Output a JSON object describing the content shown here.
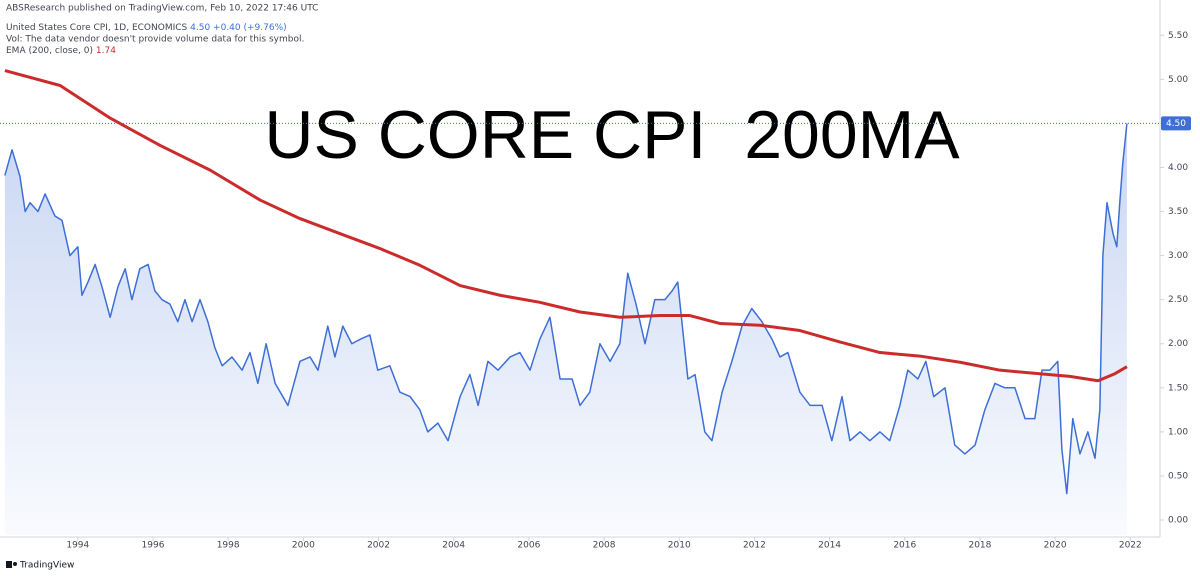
{
  "header": {
    "published": "ABSResearch published on TradingView.com, Feb 10, 2022 17:46 UTC",
    "volume_note": "Vol: The data vendor doesn't provide volume data for this symbol.",
    "brand": "TradingView"
  },
  "chart_data": {
    "type": "line",
    "title": "US CORE CPI  200MA",
    "series": [
      {
        "name": "United States Core CPI, 1D, ECONOMICS",
        "color": "#3d6fd6",
        "last_label": "4.50",
        "change_label": "+0.40 (+9.76%)",
        "x": [
          1992.06,
          1992.25,
          1992.46,
          1992.6,
          1992.73,
          1992.94,
          1993.13,
          1993.39,
          1993.58,
          1993.79,
          1994.0,
          1994.11,
          1994.27,
          1994.46,
          1994.64,
          1994.86,
          1995.07,
          1995.26,
          1995.44,
          1995.65,
          1995.87,
          1996.05,
          1996.24,
          1996.45,
          1996.66,
          1996.85,
          1997.04,
          1997.25,
          1997.46,
          1997.65,
          1997.84,
          1998.1,
          1998.37,
          1998.58,
          1998.79,
          1999.01,
          1999.25,
          1999.59,
          1999.91,
          2000.18,
          2000.39,
          2000.65,
          2000.84,
          2001.05,
          2001.29,
          2001.51,
          2001.77,
          2001.98,
          2002.3,
          2002.57,
          2002.84,
          2003.1,
          2003.31,
          2003.58,
          2003.85,
          2004.17,
          2004.43,
          2004.65,
          2004.91,
          2005.18,
          2005.5,
          2005.76,
          2006.03,
          2006.29,
          2006.56,
          2006.83,
          2007.15,
          2007.36,
          2007.62,
          2007.89,
          2008.16,
          2008.42,
          2008.63,
          2008.85,
          2009.09,
          2009.35,
          2009.62,
          2009.81,
          2009.96,
          2010.23,
          2010.42,
          2010.68,
          2010.87,
          2011.14,
          2011.4,
          2011.67,
          2011.93,
          2012.2,
          2012.47,
          2012.68,
          2012.89,
          2013.21,
          2013.48,
          2013.8,
          2014.06,
          2014.33,
          2014.54,
          2014.81,
          2015.07,
          2015.34,
          2015.6,
          2015.87,
          2016.08,
          2016.35,
          2016.56,
          2016.77,
          2017.07,
          2017.33,
          2017.6,
          2017.87,
          2018.13,
          2018.4,
          2018.66,
          2018.93,
          2019.2,
          2019.46,
          2019.65,
          2019.86,
          2020.07,
          2020.18,
          2020.31,
          2020.47,
          2020.66,
          2020.87,
          2021.06,
          2021.19,
          2021.27,
          2021.38,
          2021.54,
          2021.64,
          2021.72,
          2021.8,
          2021.91
        ],
        "values": [
          3.91,
          4.2,
          3.9,
          3.5,
          3.6,
          3.5,
          3.7,
          3.45,
          3.4,
          3.0,
          3.1,
          2.55,
          2.7,
          2.9,
          2.65,
          2.3,
          2.65,
          2.85,
          2.5,
          2.85,
          2.9,
          2.6,
          2.5,
          2.45,
          2.25,
          2.5,
          2.25,
          2.5,
          2.25,
          1.95,
          1.75,
          1.85,
          1.7,
          1.9,
          1.55,
          2.0,
          1.55,
          1.3,
          1.8,
          1.85,
          1.7,
          2.2,
          1.85,
          2.2,
          2.0,
          2.05,
          2.1,
          1.7,
          1.75,
          1.45,
          1.4,
          1.25,
          1.0,
          1.1,
          0.9,
          1.4,
          1.65,
          1.3,
          1.8,
          1.7,
          1.85,
          1.9,
          1.7,
          2.05,
          2.3,
          1.6,
          1.6,
          1.3,
          1.45,
          2.0,
          1.8,
          2.0,
          2.8,
          2.45,
          2.0,
          2.5,
          2.5,
          2.6,
          2.7,
          1.6,
          1.65,
          1.0,
          0.9,
          1.45,
          1.8,
          2.2,
          2.4,
          2.25,
          2.05,
          1.85,
          1.9,
          1.45,
          1.3,
          1.3,
          0.9,
          1.4,
          0.9,
          1.0,
          0.9,
          1.0,
          0.9,
          1.3,
          1.7,
          1.6,
          1.8,
          1.4,
          1.5,
          0.85,
          0.75,
          0.85,
          1.25,
          1.55,
          1.5,
          1.5,
          1.15,
          1.15,
          1.7,
          1.7,
          1.8,
          0.8,
          0.3,
          1.15,
          0.75,
          1.0,
          0.7,
          1.25,
          3.0,
          3.6,
          3.25,
          3.1,
          3.6,
          4.05,
          4.5
        ]
      },
      {
        "name": "EMA (200, close, 0)",
        "color": "#cc2b2b",
        "last_label": "1.74",
        "x": [
          1992.06,
          1993.53,
          1994.86,
          1996.19,
          1997.52,
          1998.85,
          1999.91,
          2000.97,
          2002.04,
          2003.1,
          2004.17,
          2005.23,
          2006.29,
          2007.36,
          2008.42,
          2009.49,
          2010.28,
          2011.08,
          2012.15,
          2013.21,
          2014.27,
          2015.34,
          2016.4,
          2017.47,
          2018.53,
          2019.59,
          2020.39,
          2021.14,
          2021.59,
          2021.91
        ],
        "values": [
          5.1,
          4.93,
          4.56,
          4.25,
          3.97,
          3.63,
          3.42,
          3.25,
          3.08,
          2.89,
          2.66,
          2.55,
          2.47,
          2.36,
          2.3,
          2.32,
          2.32,
          2.23,
          2.21,
          2.15,
          2.02,
          1.9,
          1.86,
          1.79,
          1.7,
          1.66,
          1.63,
          1.58,
          1.66,
          1.74
        ]
      }
    ],
    "xlim": [
      1991.93,
      2022.79
    ],
    "xticks": [
      1994,
      1996,
      1998,
      2000,
      2002,
      2004,
      2006,
      2008,
      2010,
      2012,
      2014,
      2016,
      2018,
      2020,
      2022
    ],
    "ylim": [
      -0.17,
      5.9
    ],
    "yticks": [
      {
        "value": 0,
        "label": "0.00"
      },
      {
        "value": 0.5,
        "label": "0.50"
      },
      {
        "value": 1,
        "label": "1.00"
      },
      {
        "value": 1.5,
        "label": "1.50"
      },
      {
        "value": 2,
        "label": "2.00"
      },
      {
        "value": 2.5,
        "label": "2.50"
      },
      {
        "value": 3,
        "label": "3.00"
      },
      {
        "value": 3.5,
        "label": "3.50"
      },
      {
        "value": 4,
        "label": "4.00"
      },
      {
        "value": 4.5,
        "label": "4.50"
      },
      {
        "value": 5,
        "label": "5.00"
      },
      {
        "value": 5.5,
        "label": "5.50"
      }
    ],
    "grid": false
  }
}
